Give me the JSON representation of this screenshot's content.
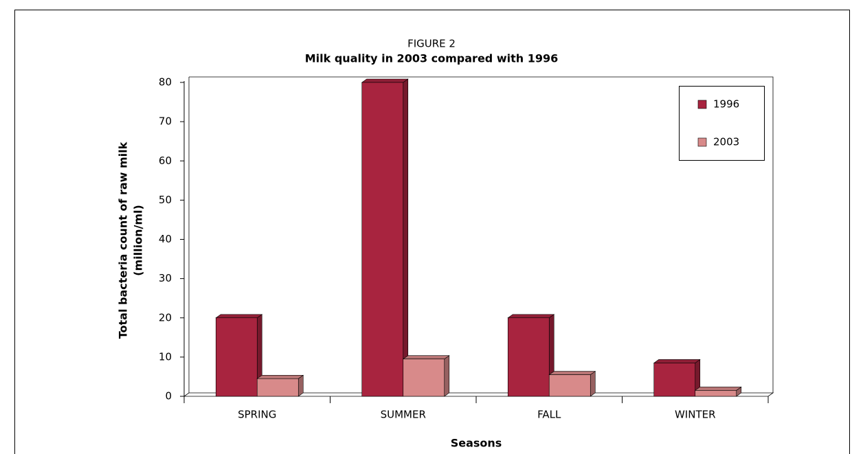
{
  "chart_data": {
    "type": "bar3d",
    "title": "FIGURE 2",
    "subtitle": "Milk quality in 2003 compared with 1996",
    "y_label": [
      "Total bacteria count of raw  milk",
      "(million/ml)"
    ],
    "x_label": "Seasons",
    "categories": [
      "SPRING",
      "SUMMER",
      "FALL",
      "WINTER"
    ],
    "series": [
      {
        "name": "1996",
        "color": "#a8243f",
        "values": [
          20,
          80,
          20,
          8.5
        ]
      },
      {
        "name": "2003",
        "color": "#d88a8a",
        "values": [
          4.5,
          9.5,
          5.5,
          1.5
        ]
      }
    ],
    "ylim": [
      0,
      80
    ],
    "yticks": [
      0,
      10,
      20,
      30,
      40,
      50,
      60,
      70,
      80
    ],
    "grid": false,
    "legend": "top-right"
  }
}
